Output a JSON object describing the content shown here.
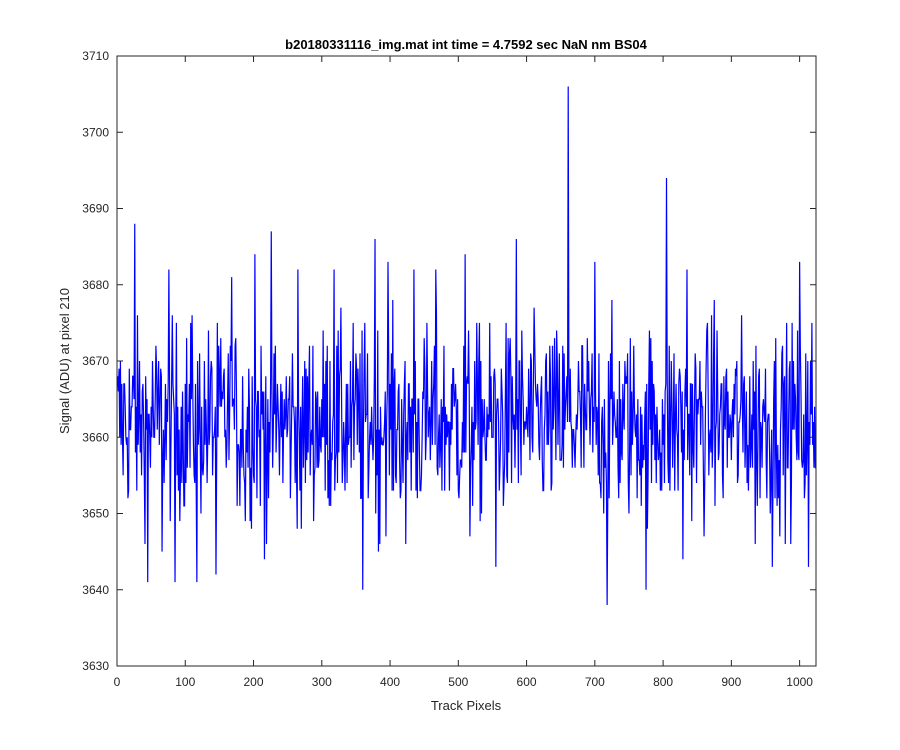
{
  "chart_data": {
    "type": "line",
    "title": "b20180331116_img.mat int time = 4.7592 sec  NaN nm BS04",
    "xlabel": "Track Pixels",
    "ylabel": "Signal (ADU) at pixel 210",
    "xlim": [
      0,
      1024
    ],
    "ylim": [
      3630,
      3710
    ],
    "xticks": [
      "0",
      "100",
      "200",
      "300",
      "400",
      "500",
      "600",
      "700",
      "800",
      "900",
      "1000"
    ],
    "yticks": [
      "3630",
      "3640",
      "3650",
      "3660",
      "3670",
      "3680",
      "3690",
      "3700",
      "3710"
    ],
    "grid": false,
    "legend": "none",
    "series": [
      {
        "color": "#0000ff",
        "x_start": 1,
        "x_step": 1,
        "count": 1024,
        "mean": 3662,
        "peaks": [
          {
            "x": 26,
            "y": 3688
          },
          {
            "x": 45,
            "y": 3641
          },
          {
            "x": 66,
            "y": 3645
          },
          {
            "x": 76,
            "y": 3682
          },
          {
            "x": 85,
            "y": 3641
          },
          {
            "x": 108,
            "y": 3675
          },
          {
            "x": 117,
            "y": 3641
          },
          {
            "x": 145,
            "y": 3642
          },
          {
            "x": 168,
            "y": 3681
          },
          {
            "x": 188,
            "y": 3649
          },
          {
            "x": 202,
            "y": 3684
          },
          {
            "x": 216,
            "y": 3644
          },
          {
            "x": 226,
            "y": 3687
          },
          {
            "x": 265,
            "y": 3682
          },
          {
            "x": 270,
            "y": 3648
          },
          {
            "x": 318,
            "y": 3682
          },
          {
            "x": 360,
            "y": 3640
          },
          {
            "x": 378,
            "y": 3686
          },
          {
            "x": 383,
            "y": 3645
          },
          {
            "x": 397,
            "y": 3683
          },
          {
            "x": 423,
            "y": 3646
          },
          {
            "x": 435,
            "y": 3682
          },
          {
            "x": 467,
            "y": 3682
          },
          {
            "x": 510,
            "y": 3684
          },
          {
            "x": 517,
            "y": 3647
          },
          {
            "x": 555,
            "y": 3643
          },
          {
            "x": 585,
            "y": 3686
          },
          {
            "x": 661,
            "y": 3706
          },
          {
            "x": 700,
            "y": 3683
          },
          {
            "x": 718,
            "y": 3638
          },
          {
            "x": 775,
            "y": 3640
          },
          {
            "x": 805,
            "y": 3694
          },
          {
            "x": 829,
            "y": 3644
          },
          {
            "x": 835,
            "y": 3682
          },
          {
            "x": 875,
            "y": 3678
          },
          {
            "x": 935,
            "y": 3646
          },
          {
            "x": 960,
            "y": 3643
          },
          {
            "x": 1000,
            "y": 3683
          },
          {
            "x": 1013,
            "y": 3643
          },
          {
            "x": 1018,
            "y": 3675
          }
        ]
      }
    ]
  }
}
